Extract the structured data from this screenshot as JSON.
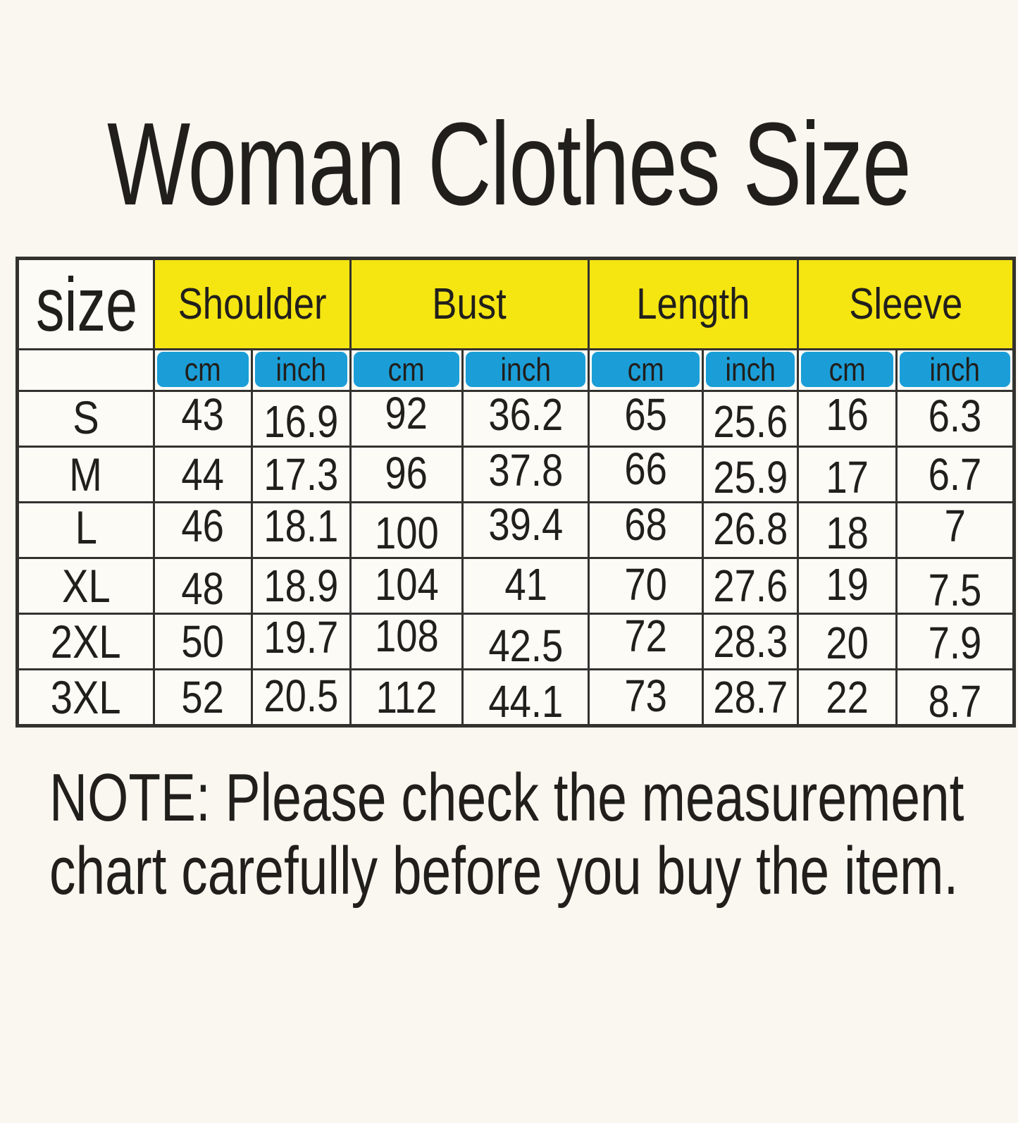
{
  "title": "Woman Clothes Size",
  "table": {
    "corner_label": "size",
    "group_headers": [
      "Shoulder",
      "Bust",
      "Length",
      "Sleeve"
    ],
    "unit_headers": [
      "cm",
      "inch",
      "cm",
      "inch",
      "cm",
      "inch",
      "cm",
      "inch"
    ]
  },
  "chart_data": {
    "type": "table",
    "title": "Woman Clothes Size",
    "columns": [
      "size",
      "Shoulder (cm)",
      "Shoulder (inch)",
      "Bust (cm)",
      "Bust (inch)",
      "Length (cm)",
      "Length (inch)",
      "Sleeve (cm)",
      "Sleeve (inch)"
    ],
    "rows": [
      {
        "size": "S",
        "values": [
          43,
          16.9,
          92,
          36.2,
          65,
          25.6,
          16,
          6.3
        ]
      },
      {
        "size": "M",
        "values": [
          44,
          17.3,
          96,
          37.8,
          66,
          25.9,
          17,
          6.7
        ]
      },
      {
        "size": "L",
        "values": [
          46,
          18.1,
          100,
          39.4,
          68,
          26.8,
          18,
          7
        ]
      },
      {
        "size": "XL",
        "values": [
          48,
          18.9,
          104,
          41,
          70,
          27.6,
          19,
          7.5
        ]
      },
      {
        "size": "2XL",
        "values": [
          50,
          19.7,
          108,
          42.5,
          72,
          28.3,
          20,
          7.9
        ]
      },
      {
        "size": "3XL",
        "values": [
          52,
          20.5,
          112,
          44.1,
          73,
          28.7,
          22,
          8.7
        ]
      }
    ]
  },
  "note_lines": [
    "NOTE: Please check the measurement",
    "chart carefully  before you buy the item."
  ],
  "colors": {
    "background": "#f9f7f0",
    "cell_background": "#fcfbf6",
    "header_yellow": "#f5e511",
    "unit_blue": "#1b9ed8",
    "border": "#34322e",
    "text": "#211f1c"
  }
}
